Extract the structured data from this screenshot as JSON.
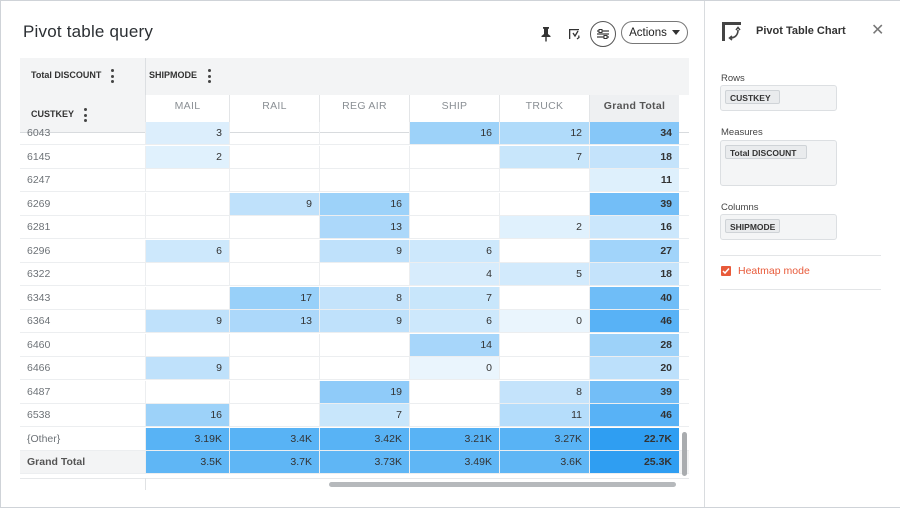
{
  "title": "Pivot table query",
  "toolbar": {
    "pin_icon": "pin-icon",
    "chart_icon": "chart-type-icon",
    "settings_icon": "settings-sliders-icon",
    "actions_label": "Actions"
  },
  "pivot": {
    "measure_header": "Total DISCOUNT",
    "column_field": "SHIPMODE",
    "row_field": "CUSTKEY",
    "columns": [
      "MAIL",
      "RAIL",
      "REG AIR",
      "SHIP",
      "TRUCK",
      "Grand Total"
    ],
    "rows": [
      {
        "key": "6043",
        "cells": [
          "3",
          "",
          "",
          "16",
          "12",
          "34"
        ]
      },
      {
        "key": "6145",
        "cells": [
          "2",
          "",
          "",
          "",
          "7",
          "18"
        ]
      },
      {
        "key": "6247",
        "cells": [
          "",
          "",
          "",
          "",
          "",
          "11"
        ]
      },
      {
        "key": "6269",
        "cells": [
          "",
          "9",
          "16",
          "",
          "",
          "39"
        ]
      },
      {
        "key": "6281",
        "cells": [
          "",
          "",
          "13",
          "",
          "2",
          "16"
        ]
      },
      {
        "key": "6296",
        "cells": [
          "6",
          "",
          "9",
          "6",
          "",
          "27"
        ]
      },
      {
        "key": "6322",
        "cells": [
          "",
          "",
          "",
          "4",
          "5",
          "18"
        ]
      },
      {
        "key": "6343",
        "cells": [
          "",
          "17",
          "8",
          "7",
          "",
          "40"
        ]
      },
      {
        "key": "6364",
        "cells": [
          "9",
          "13",
          "9",
          "6",
          "0",
          "46"
        ]
      },
      {
        "key": "6460",
        "cells": [
          "",
          "",
          "",
          "14",
          "",
          "28"
        ]
      },
      {
        "key": "6466",
        "cells": [
          "9",
          "",
          "",
          "0",
          "",
          "20"
        ]
      },
      {
        "key": "6487",
        "cells": [
          "",
          "",
          "19",
          "",
          "8",
          "39"
        ]
      },
      {
        "key": "6538",
        "cells": [
          "16",
          "",
          "7",
          "",
          "11",
          "46"
        ]
      },
      {
        "key": "{Other}",
        "cells": [
          "3.19K",
          "3.4K",
          "3.42K",
          "3.21K",
          "3.27K",
          "22.7K"
        ]
      },
      {
        "key": "Grand Total",
        "cells": [
          "3.5K",
          "3.7K",
          "3.73K",
          "3.49K",
          "3.6K",
          "25.3K"
        ]
      }
    ]
  },
  "panel": {
    "title": "Pivot Table Chart",
    "rows_label": "Rows",
    "rows_value": "CUSTKEY",
    "measures_label": "Measures",
    "measures_value": "Total DISCOUNT",
    "columns_label": "Columns",
    "columns_value": "SHIPMODE",
    "heatmap_label": "Heatmap mode",
    "heatmap_checked": true
  },
  "colors": {
    "heatmap_light": "#eaf5fd",
    "heatmap_dark": "#2a9df4",
    "accent": "#e85a3a"
  }
}
